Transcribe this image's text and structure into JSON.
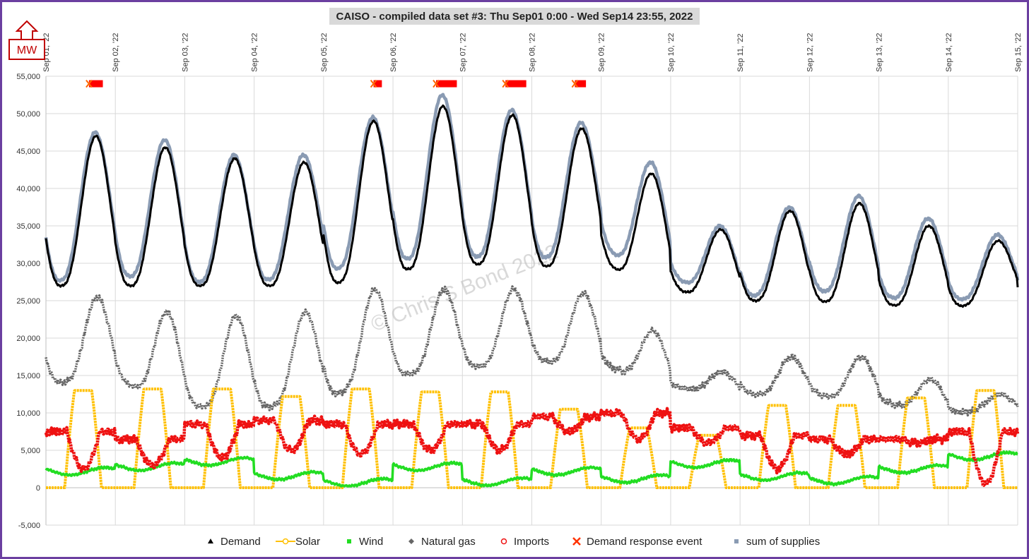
{
  "chart_data": {
    "type": "line",
    "title": "CAISO - compiled data set #3: Thu Sep01 0:00 - Wed Sep14 23:55, 2022",
    "unit_badge": "MW",
    "watermark": "© Chris S Bond  2022",
    "x_tick_labels": [
      "Sep 01, '22",
      "Sep 02, '22",
      "Sep 03, '22",
      "Sep 04, '22",
      "Sep 05, '22",
      "Sep 06, '22",
      "Sep 07, '22",
      "Sep 08, '22",
      "Sep 09, '22",
      "Sep 10, '22",
      "Sep 11, '22",
      "Sep 12, '22",
      "Sep 13, '22",
      "Sep 14, '22",
      "Sep 15, '22"
    ],
    "x_range_days": [
      0,
      14
    ],
    "ylim": [
      -5000,
      55000
    ],
    "y_ticks": [
      -5000,
      0,
      5000,
      10000,
      15000,
      20000,
      25000,
      30000,
      35000,
      40000,
      45000,
      50000,
      55000
    ],
    "y_tick_labels": [
      "-5,000",
      "0",
      "5,000",
      "10,000",
      "15,000",
      "20,000",
      "25,000",
      "30,000",
      "35,000",
      "40,000",
      "45,000",
      "50,000",
      "55,000"
    ],
    "grid": true,
    "legend_position": "bottom",
    "daily_profiles": {
      "demand": {
        "min": [
          27000,
          27000,
          27000,
          27000,
          27000,
          29000,
          30000,
          29500,
          30000,
          26500,
          25000,
          25000,
          24500,
          24000,
          25500
        ],
        "max": [
          47000,
          45500,
          44000,
          43500,
          49000,
          51000,
          49800,
          48000,
          42000,
          34500,
          37000,
          38000,
          35000,
          33000
        ]
      },
      "supplies": {
        "min": [
          27500,
          28500,
          27500,
          27500,
          29000,
          30500,
          31000,
          30500,
          32000,
          28000,
          25500,
          26500,
          25500,
          25000,
          26000
        ],
        "max": [
          47500,
          46500,
          44500,
          44500,
          49500,
          52500,
          50500,
          48800,
          43500,
          35000,
          37500,
          39000,
          36000,
          33800
        ]
      },
      "natural_gas": {
        "min": [
          14000,
          14500,
          11000,
          10500,
          12000,
          15000,
          16000,
          17000,
          16500,
          13500,
          12500,
          12500,
          11500,
          10000,
          10500
        ],
        "max": [
          25500,
          23500,
          23000,
          23500,
          26500,
          26500,
          26500,
          26000,
          21000,
          15500,
          17500,
          17500,
          14500,
          12500
        ]
      },
      "solar_peak": [
        13000,
        13200,
        13200,
        12200,
        13200,
        12800,
        12800,
        10500,
        8000,
        7000,
        11000,
        11000,
        12000,
        13000
      ],
      "imports": {
        "night": [
          7500,
          6500,
          8500,
          9000,
          8500,
          8500,
          8500,
          9500,
          10000,
          8000,
          7000,
          6500,
          6500,
          7500
        ],
        "day": [
          2500,
          3000,
          4000,
          5000,
          4500,
          5000,
          5000,
          7500,
          6500,
          6000,
          2500,
          4500,
          6000,
          500
        ]
      },
      "wind_mean": [
        2200,
        2800,
        3500,
        1600,
        700,
        2800,
        800,
        2200,
        1200,
        3200,
        1500,
        1000,
        2500,
        4200
      ]
    },
    "demand_response_events_days": [
      [
        0.62,
        0.82
      ],
      [
        4.72,
        4.84
      ],
      [
        5.62,
        5.92
      ],
      [
        6.62,
        6.92
      ],
      [
        7.62,
        7.78
      ]
    ],
    "series": [
      {
        "name": "Demand",
        "key": "demand",
        "color": "#000000",
        "marker": "triangle"
      },
      {
        "name": "Solar",
        "key": "solar",
        "color": "#ffc000",
        "marker": "circle-open"
      },
      {
        "name": "Wind",
        "key": "wind",
        "color": "#22dd22",
        "marker": "square"
      },
      {
        "name": "Natural gas",
        "key": "natural_gas",
        "color": "#666666",
        "marker": "diamond"
      },
      {
        "name": "Imports",
        "key": "imports",
        "color": "#ee1111",
        "marker": "circle-open"
      },
      {
        "name": "Demand response event",
        "key": "dr_event",
        "color": "#ff3300",
        "marker": "x"
      },
      {
        "name": "sum of supplies",
        "key": "supplies",
        "color": "#8a9bb3",
        "marker": "square"
      }
    ]
  },
  "colors": {
    "frame": "#6b3fa0",
    "grid": "#d9d9d9",
    "dr_band": "#ff0000",
    "title_bg": "#d9d9d9",
    "badge": "#c00000"
  }
}
